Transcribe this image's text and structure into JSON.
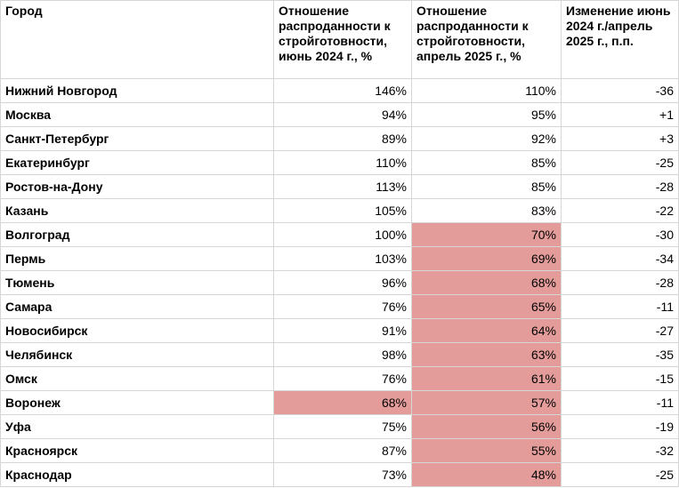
{
  "table": {
    "headers": [
      "Город",
      "Отношение распроданности к стройготовности, июнь 2024 г., %",
      "Отношение распроданности к стройготовности, апрель 2025 г., %",
      "Изменение июнь 2024 г./апрель 2025 г., п.п."
    ],
    "highlight_color": "#e39c99",
    "rows": [
      {
        "city": "Нижний Новгород",
        "jun2024": "146%",
        "apr2025": "110%",
        "change": "-36",
        "hl_jun": false,
        "hl_apr": false
      },
      {
        "city": "Москва",
        "jun2024": "94%",
        "apr2025": "95%",
        "change": "+1",
        "hl_jun": false,
        "hl_apr": false
      },
      {
        "city": "Санкт-Петербург",
        "jun2024": "89%",
        "apr2025": "92%",
        "change": "+3",
        "hl_jun": false,
        "hl_apr": false
      },
      {
        "city": "Екатеринбург",
        "jun2024": "110%",
        "apr2025": "85%",
        "change": "-25",
        "hl_jun": false,
        "hl_apr": false
      },
      {
        "city": "Ростов-на-Дону",
        "jun2024": "113%",
        "apr2025": "85%",
        "change": "-28",
        "hl_jun": false,
        "hl_apr": false
      },
      {
        "city": "Казань",
        "jun2024": "105%",
        "apr2025": "83%",
        "change": "-22",
        "hl_jun": false,
        "hl_apr": false
      },
      {
        "city": "Волгоград",
        "jun2024": "100%",
        "apr2025": "70%",
        "change": "-30",
        "hl_jun": false,
        "hl_apr": true
      },
      {
        "city": "Пермь",
        "jun2024": "103%",
        "apr2025": "69%",
        "change": "-34",
        "hl_jun": false,
        "hl_apr": true
      },
      {
        "city": "Тюмень",
        "jun2024": "96%",
        "apr2025": "68%",
        "change": "-28",
        "hl_jun": false,
        "hl_apr": true
      },
      {
        "city": "Самара",
        "jun2024": "76%",
        "apr2025": "65%",
        "change": "-11",
        "hl_jun": false,
        "hl_apr": true
      },
      {
        "city": "Новосибирск",
        "jun2024": "91%",
        "apr2025": "64%",
        "change": "-27",
        "hl_jun": false,
        "hl_apr": true
      },
      {
        "city": "Челябинск",
        "jun2024": "98%",
        "apr2025": "63%",
        "change": "-35",
        "hl_jun": false,
        "hl_apr": true
      },
      {
        "city": "Омск",
        "jun2024": "76%",
        "apr2025": "61%",
        "change": "-15",
        "hl_jun": false,
        "hl_apr": true
      },
      {
        "city": "Воронеж",
        "jun2024": "68%",
        "apr2025": "57%",
        "change": "-11",
        "hl_jun": true,
        "hl_apr": true
      },
      {
        "city": "Уфа",
        "jun2024": "75%",
        "apr2025": "56%",
        "change": "-19",
        "hl_jun": false,
        "hl_apr": true
      },
      {
        "city": "Красноярск",
        "jun2024": "87%",
        "apr2025": "55%",
        "change": "-32",
        "hl_jun": false,
        "hl_apr": true
      },
      {
        "city": "Краснодар",
        "jun2024": "73%",
        "apr2025": "48%",
        "change": "-25",
        "hl_jun": false,
        "hl_apr": true
      }
    ]
  }
}
